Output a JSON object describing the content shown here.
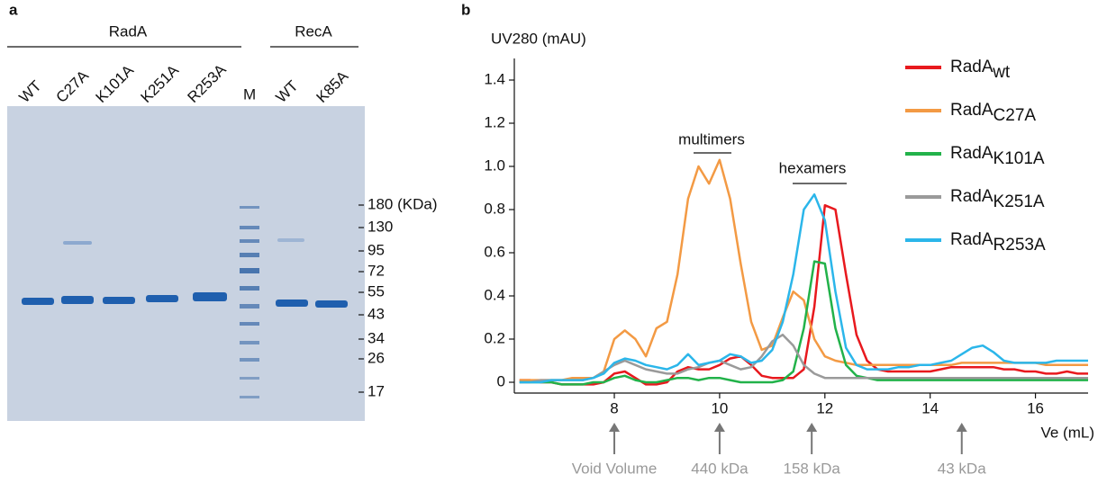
{
  "panel_a": {
    "label": "a",
    "groups": [
      "RadA",
      "RecA"
    ],
    "lanes": [
      "WT",
      "C27A",
      "K101A",
      "K251A",
      "R253A",
      "M",
      "WT",
      "K85A"
    ],
    "marker_sizes": [
      "180 (KDa)",
      "130",
      "95",
      "72",
      "55",
      "43",
      "34",
      "26",
      "17"
    ]
  },
  "chart_data": {
    "type": "line",
    "label": "b",
    "x_label": "Ve (mL)",
    "y_label": "UV280 (mAU)",
    "x": [
      6.2,
      6.4,
      6.6,
      6.8,
      7.0,
      7.2,
      7.4,
      7.6,
      7.8,
      8.0,
      8.2,
      8.4,
      8.6,
      8.8,
      9.0,
      9.2,
      9.4,
      9.6,
      9.8,
      10.0,
      10.2,
      10.4,
      10.6,
      10.8,
      11.0,
      11.2,
      11.4,
      11.6,
      11.8,
      12.0,
      12.2,
      12.4,
      12.6,
      12.8,
      13.0,
      13.2,
      13.4,
      13.6,
      13.8,
      14.0,
      14.2,
      14.4,
      14.6,
      14.8,
      15.0,
      15.2,
      15.4,
      15.6,
      15.8,
      16.0,
      16.2,
      16.4,
      16.6,
      16.8,
      17.0
    ],
    "series": [
      {
        "name": "RadA",
        "subscript": "wt",
        "color": "#e8191e",
        "values": [
          0.01,
          0.01,
          0,
          0,
          -0.01,
          -0.01,
          -0.01,
          -0.01,
          0,
          0.04,
          0.05,
          0.02,
          -0.01,
          -0.01,
          0,
          0.05,
          0.07,
          0.06,
          0.06,
          0.08,
          0.11,
          0.12,
          0.08,
          0.03,
          0.02,
          0.02,
          0.02,
          0.06,
          0.35,
          0.82,
          0.8,
          0.5,
          0.22,
          0.1,
          0.06,
          0.05,
          0.05,
          0.05,
          0.05,
          0.05,
          0.06,
          0.07,
          0.07,
          0.07,
          0.07,
          0.07,
          0.06,
          0.06,
          0.05,
          0.05,
          0.04,
          0.04,
          0.05,
          0.04,
          0.04
        ]
      },
      {
        "name": "RadA",
        "subscript": "C27A",
        "color": "#f39a44",
        "values": [
          0.01,
          0.01,
          0.01,
          0.01,
          0.01,
          0.02,
          0.02,
          0.02,
          0.05,
          0.2,
          0.24,
          0.2,
          0.12,
          0.25,
          0.28,
          0.5,
          0.85,
          1.0,
          0.92,
          1.03,
          0.85,
          0.55,
          0.28,
          0.15,
          0.17,
          0.3,
          0.42,
          0.38,
          0.2,
          0.12,
          0.1,
          0.09,
          0.08,
          0.08,
          0.08,
          0.08,
          0.08,
          0.08,
          0.08,
          0.08,
          0.08,
          0.08,
          0.09,
          0.09,
          0.09,
          0.09,
          0.09,
          0.09,
          0.09,
          0.09,
          0.08,
          0.08,
          0.08,
          0.08,
          0.08
        ]
      },
      {
        "name": "RadA",
        "subscript": "K101A",
        "color": "#22b24a",
        "values": [
          0,
          0,
          0,
          0,
          -0.01,
          -0.01,
          -0.01,
          0,
          0,
          0.02,
          0.03,
          0.01,
          0,
          0,
          0.01,
          0.02,
          0.02,
          0.01,
          0.02,
          0.02,
          0.01,
          0,
          0,
          0,
          0,
          0.01,
          0.05,
          0.25,
          0.56,
          0.55,
          0.25,
          0.08,
          0.03,
          0.02,
          0.01,
          0.01,
          0.01,
          0.01,
          0.01,
          0.01,
          0.01,
          0.01,
          0.01,
          0.01,
          0.01,
          0.01,
          0.01,
          0.01,
          0.01,
          0.01,
          0.01,
          0.01,
          0.01,
          0.01,
          0.01
        ]
      },
      {
        "name": "RadA",
        "subscript": "K251A",
        "color": "#9a9a9a",
        "values": [
          0,
          0,
          0.01,
          0.01,
          0.01,
          0.01,
          0.01,
          0.02,
          0.05,
          0.08,
          0.1,
          0.08,
          0.06,
          0.05,
          0.04,
          0.04,
          0.06,
          0.07,
          0.09,
          0.1,
          0.08,
          0.06,
          0.07,
          0.12,
          0.19,
          0.22,
          0.17,
          0.08,
          0.04,
          0.02,
          0.02,
          0.02,
          0.02,
          0.02,
          0.02,
          0.02,
          0.02,
          0.02,
          0.02,
          0.02,
          0.02,
          0.02,
          0.02,
          0.02,
          0.02,
          0.02,
          0.02,
          0.02,
          0.02,
          0.02,
          0.02,
          0.02,
          0.02,
          0.02,
          0.02
        ]
      },
      {
        "name": "RadA",
        "subscript": "R253A",
        "color": "#2bb6ea",
        "values": [
          0,
          0,
          0,
          0.01,
          0.01,
          0.01,
          0.01,
          0.02,
          0.04,
          0.09,
          0.11,
          0.1,
          0.08,
          0.07,
          0.06,
          0.08,
          0.13,
          0.08,
          0.09,
          0.1,
          0.13,
          0.12,
          0.09,
          0.1,
          0.15,
          0.28,
          0.5,
          0.8,
          0.87,
          0.75,
          0.42,
          0.16,
          0.08,
          0.06,
          0.06,
          0.06,
          0.07,
          0.07,
          0.08,
          0.08,
          0.09,
          0.1,
          0.13,
          0.16,
          0.17,
          0.14,
          0.1,
          0.09,
          0.09,
          0.09,
          0.09,
          0.1,
          0.1,
          0.1,
          0.1
        ]
      }
    ],
    "xlim": [
      6.1,
      17
    ],
    "ylim": [
      -0.05,
      1.5
    ],
    "xticks": [
      8,
      10,
      12,
      14,
      16
    ],
    "yticks": [
      0,
      0.2,
      0.4,
      0.6,
      0.8,
      {
        "value": 1,
        "label": "1.0"
      },
      1.2,
      1.4
    ],
    "annotations": [
      "multimers",
      "hexamers"
    ],
    "markers": [
      {
        "label": "Void Volume",
        "x": 8
      },
      {
        "label": "440 kDa",
        "x": 10
      },
      {
        "label": "158 kDa",
        "x": 11.75
      },
      {
        "label": "43 kDa",
        "x": 14.6
      }
    ]
  }
}
